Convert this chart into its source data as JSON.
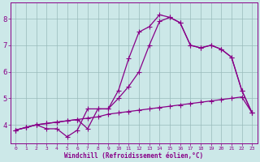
{
  "xlabel": "Windchill (Refroidissement éolien,°C)",
  "bg_color": "#cce8e8",
  "line_color": "#880088",
  "grid_color": "#99bbbb",
  "xlim": [
    -0.5,
    23.5
  ],
  "ylim": [
    3.3,
    8.6
  ],
  "xticks": [
    0,
    1,
    2,
    3,
    4,
    5,
    6,
    7,
    8,
    9,
    10,
    11,
    12,
    13,
    14,
    15,
    16,
    17,
    18,
    19,
    20,
    21,
    22,
    23
  ],
  "yticks": [
    4,
    5,
    6,
    7,
    8
  ],
  "line1_x": [
    0,
    1,
    2,
    3,
    4,
    5,
    6,
    7,
    8,
    9,
    10,
    11,
    12,
    13,
    14,
    15,
    16,
    17,
    18,
    19,
    20,
    21,
    22,
    23
  ],
  "line1_y": [
    3.8,
    3.9,
    4.0,
    4.05,
    4.1,
    4.15,
    4.2,
    4.25,
    4.3,
    4.4,
    4.45,
    4.5,
    4.55,
    4.6,
    4.65,
    4.7,
    4.75,
    4.8,
    4.85,
    4.9,
    4.95,
    5.0,
    5.05,
    4.45
  ],
  "line2_x": [
    0,
    1,
    2,
    3,
    4,
    5,
    6,
    7,
    8,
    9,
    10,
    11,
    12,
    13,
    14,
    15,
    16,
    17,
    18,
    19,
    20,
    21,
    22,
    23
  ],
  "line2_y": [
    3.8,
    3.9,
    4.0,
    3.85,
    3.85,
    3.55,
    3.8,
    4.6,
    4.6,
    4.6,
    5.3,
    6.5,
    7.5,
    7.7,
    8.15,
    8.05,
    7.85,
    7.0,
    6.9,
    7.0,
    6.85,
    6.55,
    5.3,
    4.45
  ],
  "line3_x": [
    0,
    1,
    2,
    3,
    4,
    5,
    6,
    7,
    8,
    9,
    10,
    11,
    12,
    13,
    14,
    15,
    16,
    17,
    18,
    19,
    20,
    21,
    22,
    23
  ],
  "line3_y": [
    3.8,
    3.9,
    4.0,
    4.05,
    4.1,
    4.15,
    4.2,
    3.85,
    4.6,
    4.6,
    5.0,
    5.45,
    6.0,
    7.0,
    7.9,
    8.05,
    7.85,
    7.0,
    6.9,
    7.0,
    6.85,
    6.55,
    5.3,
    4.45
  ]
}
